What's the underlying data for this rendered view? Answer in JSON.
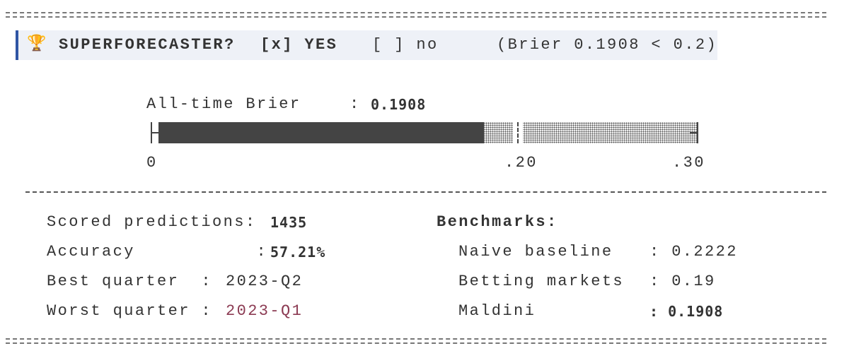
{
  "banner": {
    "trophy_icon": "trophy-icon",
    "label": "SUPERFORECASTER?",
    "yes_option": "[x] YES",
    "no_option": "[ ] no",
    "criterion": "(Brier 0.1908 < 0.2)",
    "accent_color": "#2f55a4"
  },
  "brier": {
    "label": "All-time Brier",
    "separator": ":",
    "value": "0.1908",
    "score": 0.1908,
    "threshold": 0.2,
    "scale_max": 0.3,
    "ticks": [
      "0",
      ".20",
      ".30"
    ]
  },
  "stats": [
    {
      "label": "Scored predictions:",
      "value": "1435"
    },
    {
      "label": "Accuracy           :",
      "value": "57.21%"
    },
    {
      "label": "Best quarter  :",
      "value": "2023-Q2"
    },
    {
      "label": "Worst quarter :",
      "value": "2023-Q1",
      "color": "#8b3a52"
    }
  ],
  "benchmarks": {
    "title": "Benchmarks:",
    "rows": [
      {
        "name": "Naive baseline",
        "value": ": 0.2222"
      },
      {
        "name": "Betting markets",
        "value": ": 0.19"
      },
      {
        "name": "Maldini",
        "value": ": 0.1908"
      }
    ]
  }
}
